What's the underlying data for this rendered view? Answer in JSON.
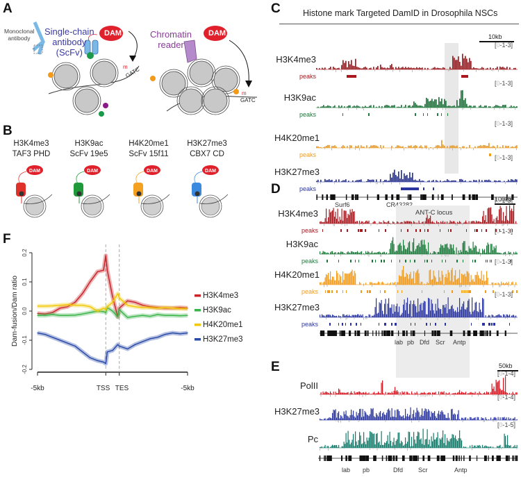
{
  "figure": {
    "panels": {
      "A": {
        "letter": "A",
        "labels": {
          "monoclonal": "Monoclonal antibody",
          "monoclonal_l1": "Monoclonal",
          "monoclonal_l2": "antibody",
          "scfv_l1": "Single-chain",
          "scfv_l2": "antibody",
          "scfv_l3": "(ScFv)",
          "dam": "DAM",
          "gatc": "GATC",
          "methyl": "m",
          "reader_l1": "Chromatin",
          "reader_l2": "reader"
        },
        "colors": {
          "dam": "#e0202a",
          "scfv": "#3a3aa0",
          "reader": "#8a3a9a",
          "orange": "#f29a1a",
          "green": "#1a9a4a",
          "purple": "#8a1a8a"
        }
      },
      "B": {
        "letter": "B",
        "items": [
          {
            "mark": "H3K4me3",
            "reader": "TAF3 PHD",
            "color": "#e0302a",
            "dam": "DAM"
          },
          {
            "mark": "H3K9ac",
            "reader": "ScFv 19e5",
            "color": "#1f9a3a",
            "dam": "DAM"
          },
          {
            "mark": "H4K20me1",
            "reader": "ScFv 15f11",
            "color": "#f4a020",
            "dam": "DAM"
          },
          {
            "mark": "H3K27me3",
            "reader": "CBX7 CD",
            "color": "#3a8ae0",
            "dam": "DAM"
          }
        ]
      },
      "C": {
        "letter": "C",
        "title": "Histone mark Targeted DamID in Drosophila NSCs",
        "scale": "10kb",
        "range_prefix": "[",
        "range_zero": "0",
        "range_rest": "-1-3]",
        "peaks_label": "peaks",
        "tracks": [
          {
            "name": "H3K4me3",
            "color": "#a8181e"
          },
          {
            "name": "H3K9ac",
            "color": "#1b7a3a"
          },
          {
            "name": "H4K20me1",
            "color": "#f29a1a"
          },
          {
            "name": "H3K27me3",
            "color": "#2a35a0"
          }
        ],
        "genes": [
          "Surf6",
          "CR43282",
          "mira"
        ]
      },
      "D": {
        "letter": "D",
        "scale": "100kb",
        "highlight": "ANT-C locus",
        "range_zero": "0",
        "range_rest": "-1-3]",
        "peaks_label": "peaks",
        "tracks": [
          {
            "name": "H3K4me3",
            "color": "#a8181e"
          },
          {
            "name": "H3K9ac",
            "color": "#1b7a3a"
          },
          {
            "name": "H4K20me1",
            "color": "#f29a1a"
          },
          {
            "name": "H3K27me3",
            "color": "#2a35a0"
          }
        ],
        "genes": [
          "lab",
          "pb",
          "Dfd",
          "Scr",
          "Antp"
        ]
      },
      "E": {
        "letter": "E",
        "scale": "50kb",
        "tracks": [
          {
            "name": "PolII",
            "color": "#d8141e",
            "range_rest": "-1-4]"
          },
          {
            "name": "H3K27me3",
            "color": "#2a35a0",
            "range_rest": "-1-4]"
          },
          {
            "name": "Pc",
            "color": "#117a6a",
            "range_rest": "-1-5]"
          }
        ],
        "range_zero": "0",
        "genes": [
          "lab",
          "pb",
          "Dfd",
          "Scr",
          "Antp"
        ]
      },
      "F": {
        "letter": "F"
      }
    }
  },
  "chart_data": {
    "type": "line",
    "title": "",
    "xlabel": "",
    "ylabel": "Dam-fusion/Dam ratio",
    "x_tick_labels": [
      "-5kb",
      "TSS",
      "TES",
      "-5kb"
    ],
    "x_positions": [
      0,
      0.455,
      0.545,
      1
    ],
    "ylim": [
      -0.2,
      0.2
    ],
    "y_ticks": [
      -0.2,
      -0.1,
      0.0,
      0.1,
      0.2
    ],
    "y_tick_labels": [
      "-0.2",
      "-0.1",
      "0.0",
      "0.1",
      "0.2"
    ],
    "vlines": [
      "TSS",
      "TES"
    ],
    "legend_position": "right",
    "x": [
      0,
      0.05,
      0.1,
      0.15,
      0.2,
      0.25,
      0.3,
      0.35,
      0.4,
      0.44,
      0.455,
      0.465,
      0.5,
      0.535,
      0.545,
      0.6,
      0.65,
      0.7,
      0.75,
      0.8,
      0.85,
      0.9,
      0.95,
      1
    ],
    "series": [
      {
        "name": "H3K4me3",
        "color": "#c8242a",
        "values": [
          -0.008,
          -0.01,
          -0.005,
          0.01,
          0.015,
          0.03,
          0.06,
          0.1,
          0.135,
          0.14,
          0.19,
          0.14,
          0.05,
          -0.02,
          0.01,
          0.035,
          0.03,
          0.02,
          0.015,
          0.012,
          0.01,
          0.01,
          0.012,
          0.01
        ]
      },
      {
        "name": "H3K9ac",
        "color": "#3ab54a",
        "values": [
          -0.015,
          -0.015,
          -0.012,
          -0.015,
          -0.015,
          -0.014,
          -0.01,
          -0.005,
          0.0,
          -0.002,
          -0.005,
          0.012,
          0.0,
          -0.02,
          0.005,
          -0.022,
          -0.018,
          -0.015,
          -0.018,
          -0.012,
          -0.015,
          -0.015,
          -0.016,
          -0.015
        ]
      },
      {
        "name": "H4K20me1",
        "color": "#f2c80a",
        "values": [
          0.017,
          0.017,
          0.018,
          0.02,
          0.022,
          0.02,
          0.02,
          0.015,
          0.0,
          0.01,
          0.005,
          0.015,
          0.03,
          0.06,
          0.045,
          0.02,
          0.015,
          0.012,
          0.012,
          0.01,
          0.012,
          0.01,
          0.008,
          0.008
        ]
      },
      {
        "name": "H3K27me3",
        "color": "#2a4aa8",
        "values": [
          -0.075,
          -0.08,
          -0.09,
          -0.1,
          -0.11,
          -0.12,
          -0.14,
          -0.16,
          -0.17,
          -0.175,
          -0.18,
          -0.14,
          -0.135,
          -0.115,
          -0.12,
          -0.13,
          -0.115,
          -0.105,
          -0.095,
          -0.09,
          -0.08,
          -0.075,
          -0.078,
          -0.075
        ]
      }
    ]
  }
}
